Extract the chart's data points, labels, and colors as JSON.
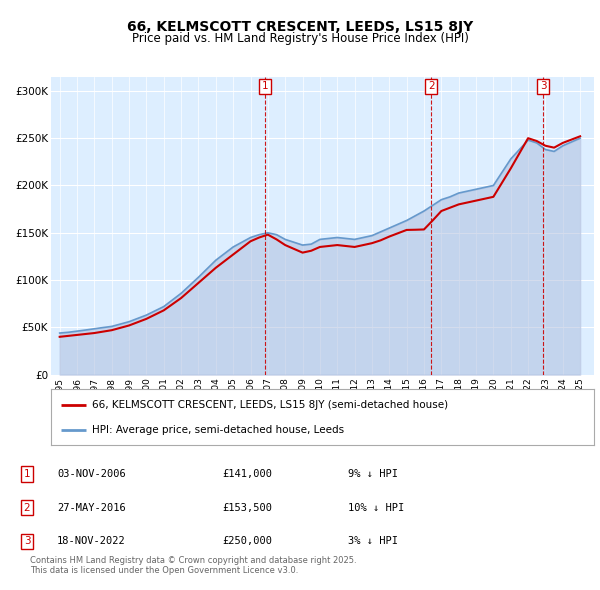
{
  "title": "66, KELMSCOTT CRESCENT, LEEDS, LS15 8JY",
  "subtitle": "Price paid vs. HM Land Registry's House Price Index (HPI)",
  "ylabel_ticks": [
    "£0",
    "£50K",
    "£100K",
    "£150K",
    "£200K",
    "£250K",
    "£300K"
  ],
  "ytick_values": [
    0,
    50000,
    100000,
    150000,
    200000,
    250000,
    300000
  ],
  "ylim": [
    0,
    315000
  ],
  "xlim_start": 1994.5,
  "xlim_end": 2025.8,
  "bg_color": "#ddeeff",
  "grid_color": "#ffffff",
  "red_line_color": "#cc0000",
  "blue_line_color": "#6699cc",
  "blue_fill_color": "#aabbdd",
  "marker_color": "#cc0000",
  "sale_dates": [
    2006.84,
    2016.41,
    2022.88
  ],
  "sale_prices": [
    141000,
    153500,
    250000
  ],
  "sale_labels": [
    "1",
    "2",
    "3"
  ],
  "legend_red": "66, KELMSCOTT CRESCENT, LEEDS, LS15 8JY (semi-detached house)",
  "legend_blue": "HPI: Average price, semi-detached house, Leeds",
  "table_rows": [
    {
      "num": "1",
      "date": "03-NOV-2006",
      "price": "£141,000",
      "hpi": "9% ↓ HPI"
    },
    {
      "num": "2",
      "date": "27-MAY-2016",
      "price": "£153,500",
      "hpi": "10% ↓ HPI"
    },
    {
      "num": "3",
      "date": "18-NOV-2022",
      "price": "£250,000",
      "hpi": "3% ↓ HPI"
    }
  ],
  "footnote": "Contains HM Land Registry data © Crown copyright and database right 2025.\nThis data is licensed under the Open Government Licence v3.0.",
  "hpi_years": [
    1995,
    1995.5,
    1996,
    1996.5,
    1997,
    1997.5,
    1998,
    1998.5,
    1999,
    1999.5,
    2000,
    2000.5,
    2001,
    2001.5,
    2002,
    2002.5,
    2003,
    2003.5,
    2004,
    2004.5,
    2005,
    2005.5,
    2006,
    2006.5,
    2007,
    2007.5,
    2008,
    2008.5,
    2009,
    2009.5,
    2010,
    2010.5,
    2011,
    2011.5,
    2012,
    2012.5,
    2013,
    2013.5,
    2014,
    2014.5,
    2015,
    2015.5,
    2016,
    2016.5,
    2017,
    2017.5,
    2018,
    2018.5,
    2019,
    2019.5,
    2020,
    2020.5,
    2021,
    2021.5,
    2022,
    2022.5,
    2023,
    2023.5,
    2024,
    2024.5,
    2025
  ],
  "hpi_values": [
    44000,
    44800,
    46000,
    47200,
    48500,
    49800,
    51000,
    53500,
    56000,
    59500,
    63000,
    67500,
    72000,
    79000,
    86000,
    94500,
    103000,
    112000,
    121000,
    128000,
    135000,
    140000,
    145000,
    148000,
    150000,
    148000,
    143000,
    140000,
    137000,
    138000,
    143000,
    144000,
    145000,
    144000,
    143000,
    145000,
    147000,
    151000,
    155000,
    159000,
    163000,
    168000,
    173000,
    179000,
    185000,
    188000,
    192000,
    194000,
    196000,
    198000,
    200000,
    214000,
    228000,
    238000,
    248000,
    245000,
    238000,
    236000,
    242000,
    246000,
    250000
  ],
  "price_years": [
    1995,
    1995.5,
    1996,
    1996.5,
    1997,
    1997.5,
    1998,
    1998.5,
    1999,
    1999.5,
    2000,
    2000.5,
    2001,
    2001.5,
    2002,
    2002.5,
    2003,
    2003.5,
    2004,
    2004.5,
    2005,
    2005.5,
    2006,
    2006.5,
    2007,
    2007.5,
    2008,
    2008.5,
    2009,
    2009.5,
    2010,
    2010.5,
    2011,
    2011.5,
    2012,
    2012.5,
    2013,
    2013.5,
    2014,
    2014.5,
    2015,
    2015.5,
    2016,
    2016.5,
    2017,
    2017.5,
    2018,
    2018.5,
    2019,
    2019.5,
    2020,
    2020.5,
    2021,
    2021.5,
    2022,
    2022.5,
    2023,
    2023.5,
    2024,
    2024.5,
    2025
  ],
  "price_values": [
    40000,
    41000,
    42000,
    43000,
    44000,
    45500,
    47000,
    49500,
    52000,
    55500,
    59000,
    63500,
    68000,
    74500,
    81000,
    89000,
    97000,
    105000,
    113000,
    120000,
    127000,
    134000,
    141000,
    145000,
    148000,
    143000,
    137000,
    133000,
    129000,
    131000,
    135000,
    136000,
    137000,
    136000,
    135000,
    137000,
    139000,
    142000,
    146000,
    149500,
    153000,
    153200,
    153500,
    163000,
    173000,
    176500,
    180000,
    182000,
    184000,
    186000,
    188000,
    203000,
    218000,
    234000,
    250000,
    247000,
    242000,
    240000,
    245000,
    248500,
    252000
  ]
}
